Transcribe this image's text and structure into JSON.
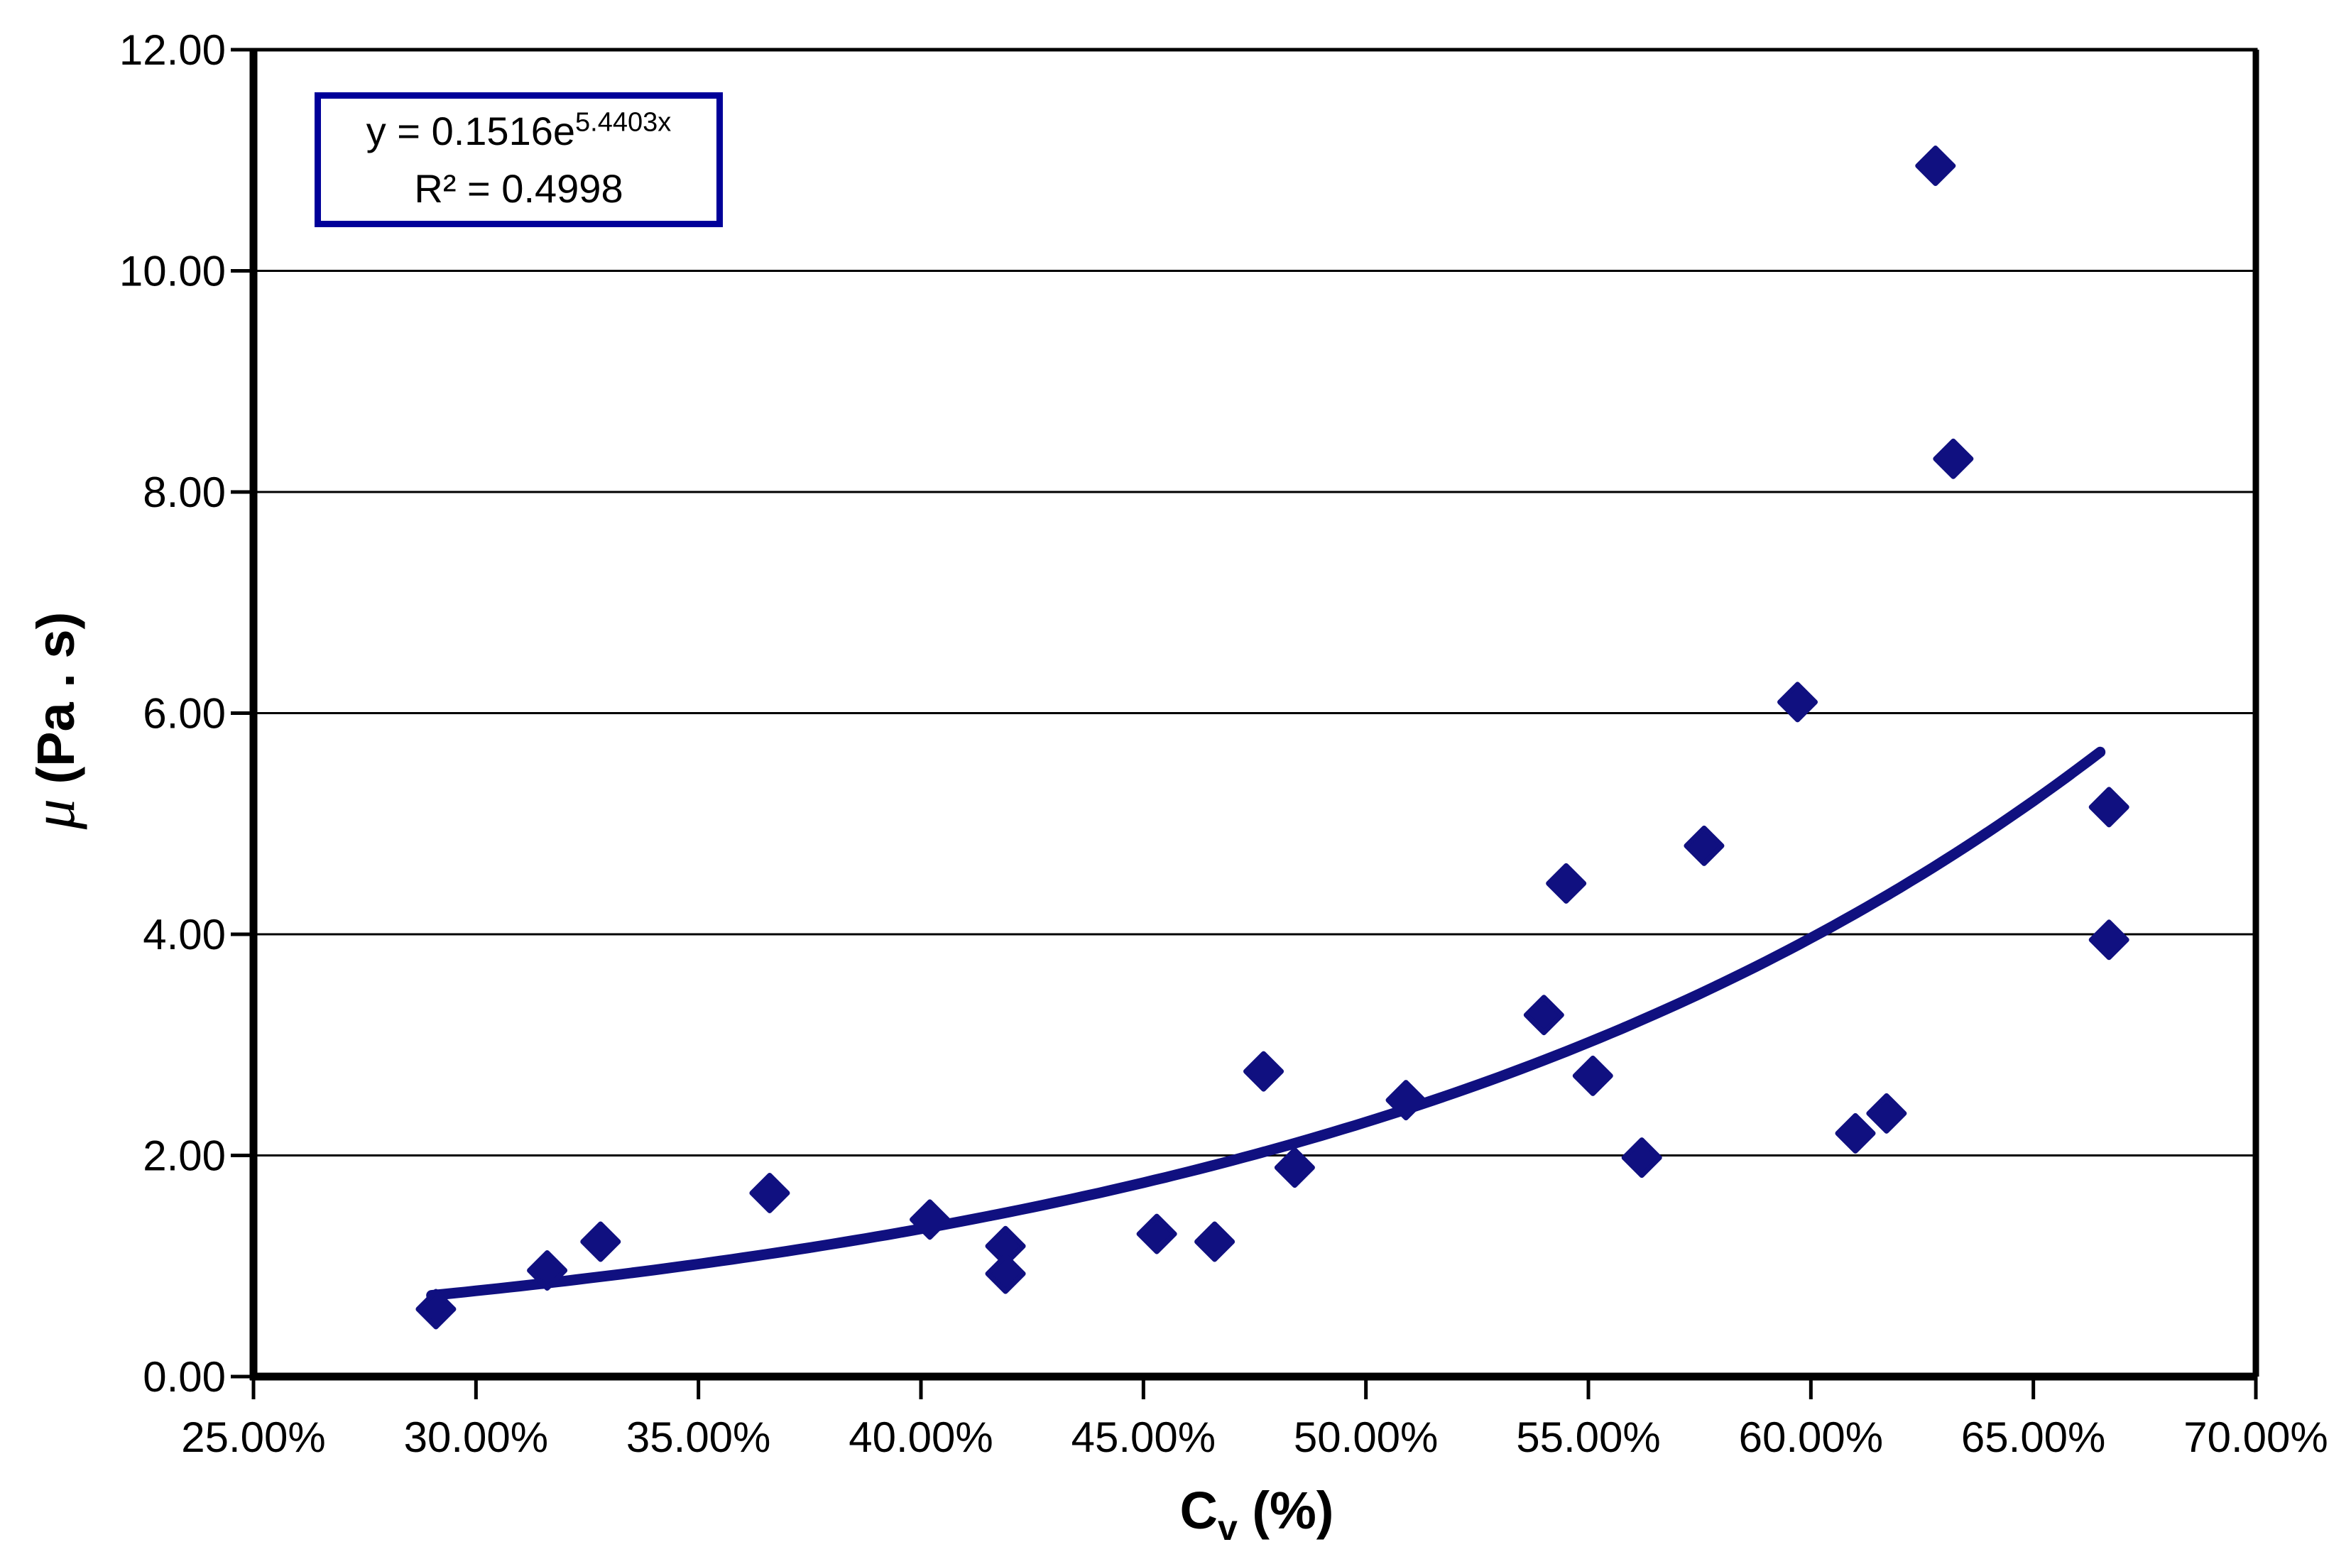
{
  "chart_data": {
    "type": "scatter",
    "title": "",
    "xlabel": {
      "base": "C",
      "sub": "v",
      "suffix": " (%)"
    },
    "ylabel": {
      "symbol": "μ",
      "suffix": " (Pa . s)"
    },
    "x_axis": {
      "min": 25,
      "max": 70,
      "tick_step": 5,
      "unit": "percent",
      "tick_labels": [
        "25.00%",
        "30.00%",
        "35.00%",
        "40.00%",
        "45.00%",
        "50.00%",
        "55.00%",
        "60.00%",
        "65.00%",
        "70.00%"
      ]
    },
    "y_axis": {
      "min": 0,
      "max": 12,
      "tick_step": 2,
      "tick_labels": [
        "0.00",
        "2.00",
        "4.00",
        "6.00",
        "8.00",
        "10.00",
        "12.00"
      ]
    },
    "grid": "horizontal-only",
    "legend": "none",
    "points": [
      [
        29.1,
        0.61
      ],
      [
        31.6,
        0.96
      ],
      [
        32.8,
        1.22
      ],
      [
        36.6,
        1.66
      ],
      [
        40.2,
        1.42
      ],
      [
        41.9,
        1.18
      ],
      [
        41.9,
        0.93
      ],
      [
        45.3,
        1.29
      ],
      [
        46.6,
        1.22
      ],
      [
        47.7,
        2.76
      ],
      [
        48.4,
        1.89
      ],
      [
        50.9,
        2.5
      ],
      [
        54.0,
        3.27
      ],
      [
        54.5,
        4.46
      ],
      [
        55.1,
        2.72
      ],
      [
        56.2,
        1.98
      ],
      [
        57.6,
        4.8
      ],
      [
        59.7,
        6.1
      ],
      [
        61.0,
        2.2
      ],
      [
        61.7,
        2.38
      ],
      [
        62.8,
        10.95
      ],
      [
        63.2,
        8.3
      ],
      [
        66.7,
        5.15
      ],
      [
        66.7,
        3.95
      ]
    ],
    "trendline": {
      "type": "exponential",
      "a": 0.1516,
      "b": 5.4403,
      "x_start_pct": 29.0,
      "x_end_pct": 66.7,
      "equation_prefix": "y = 0.1516e",
      "equation_exponent": "5.4403x",
      "r_squared_label": "R² = 0.4998"
    },
    "colors": {
      "marker": "#101080",
      "trendline": "#101080",
      "equation_border": "#000099",
      "axis": "#000000",
      "background": "#ffffff"
    }
  }
}
